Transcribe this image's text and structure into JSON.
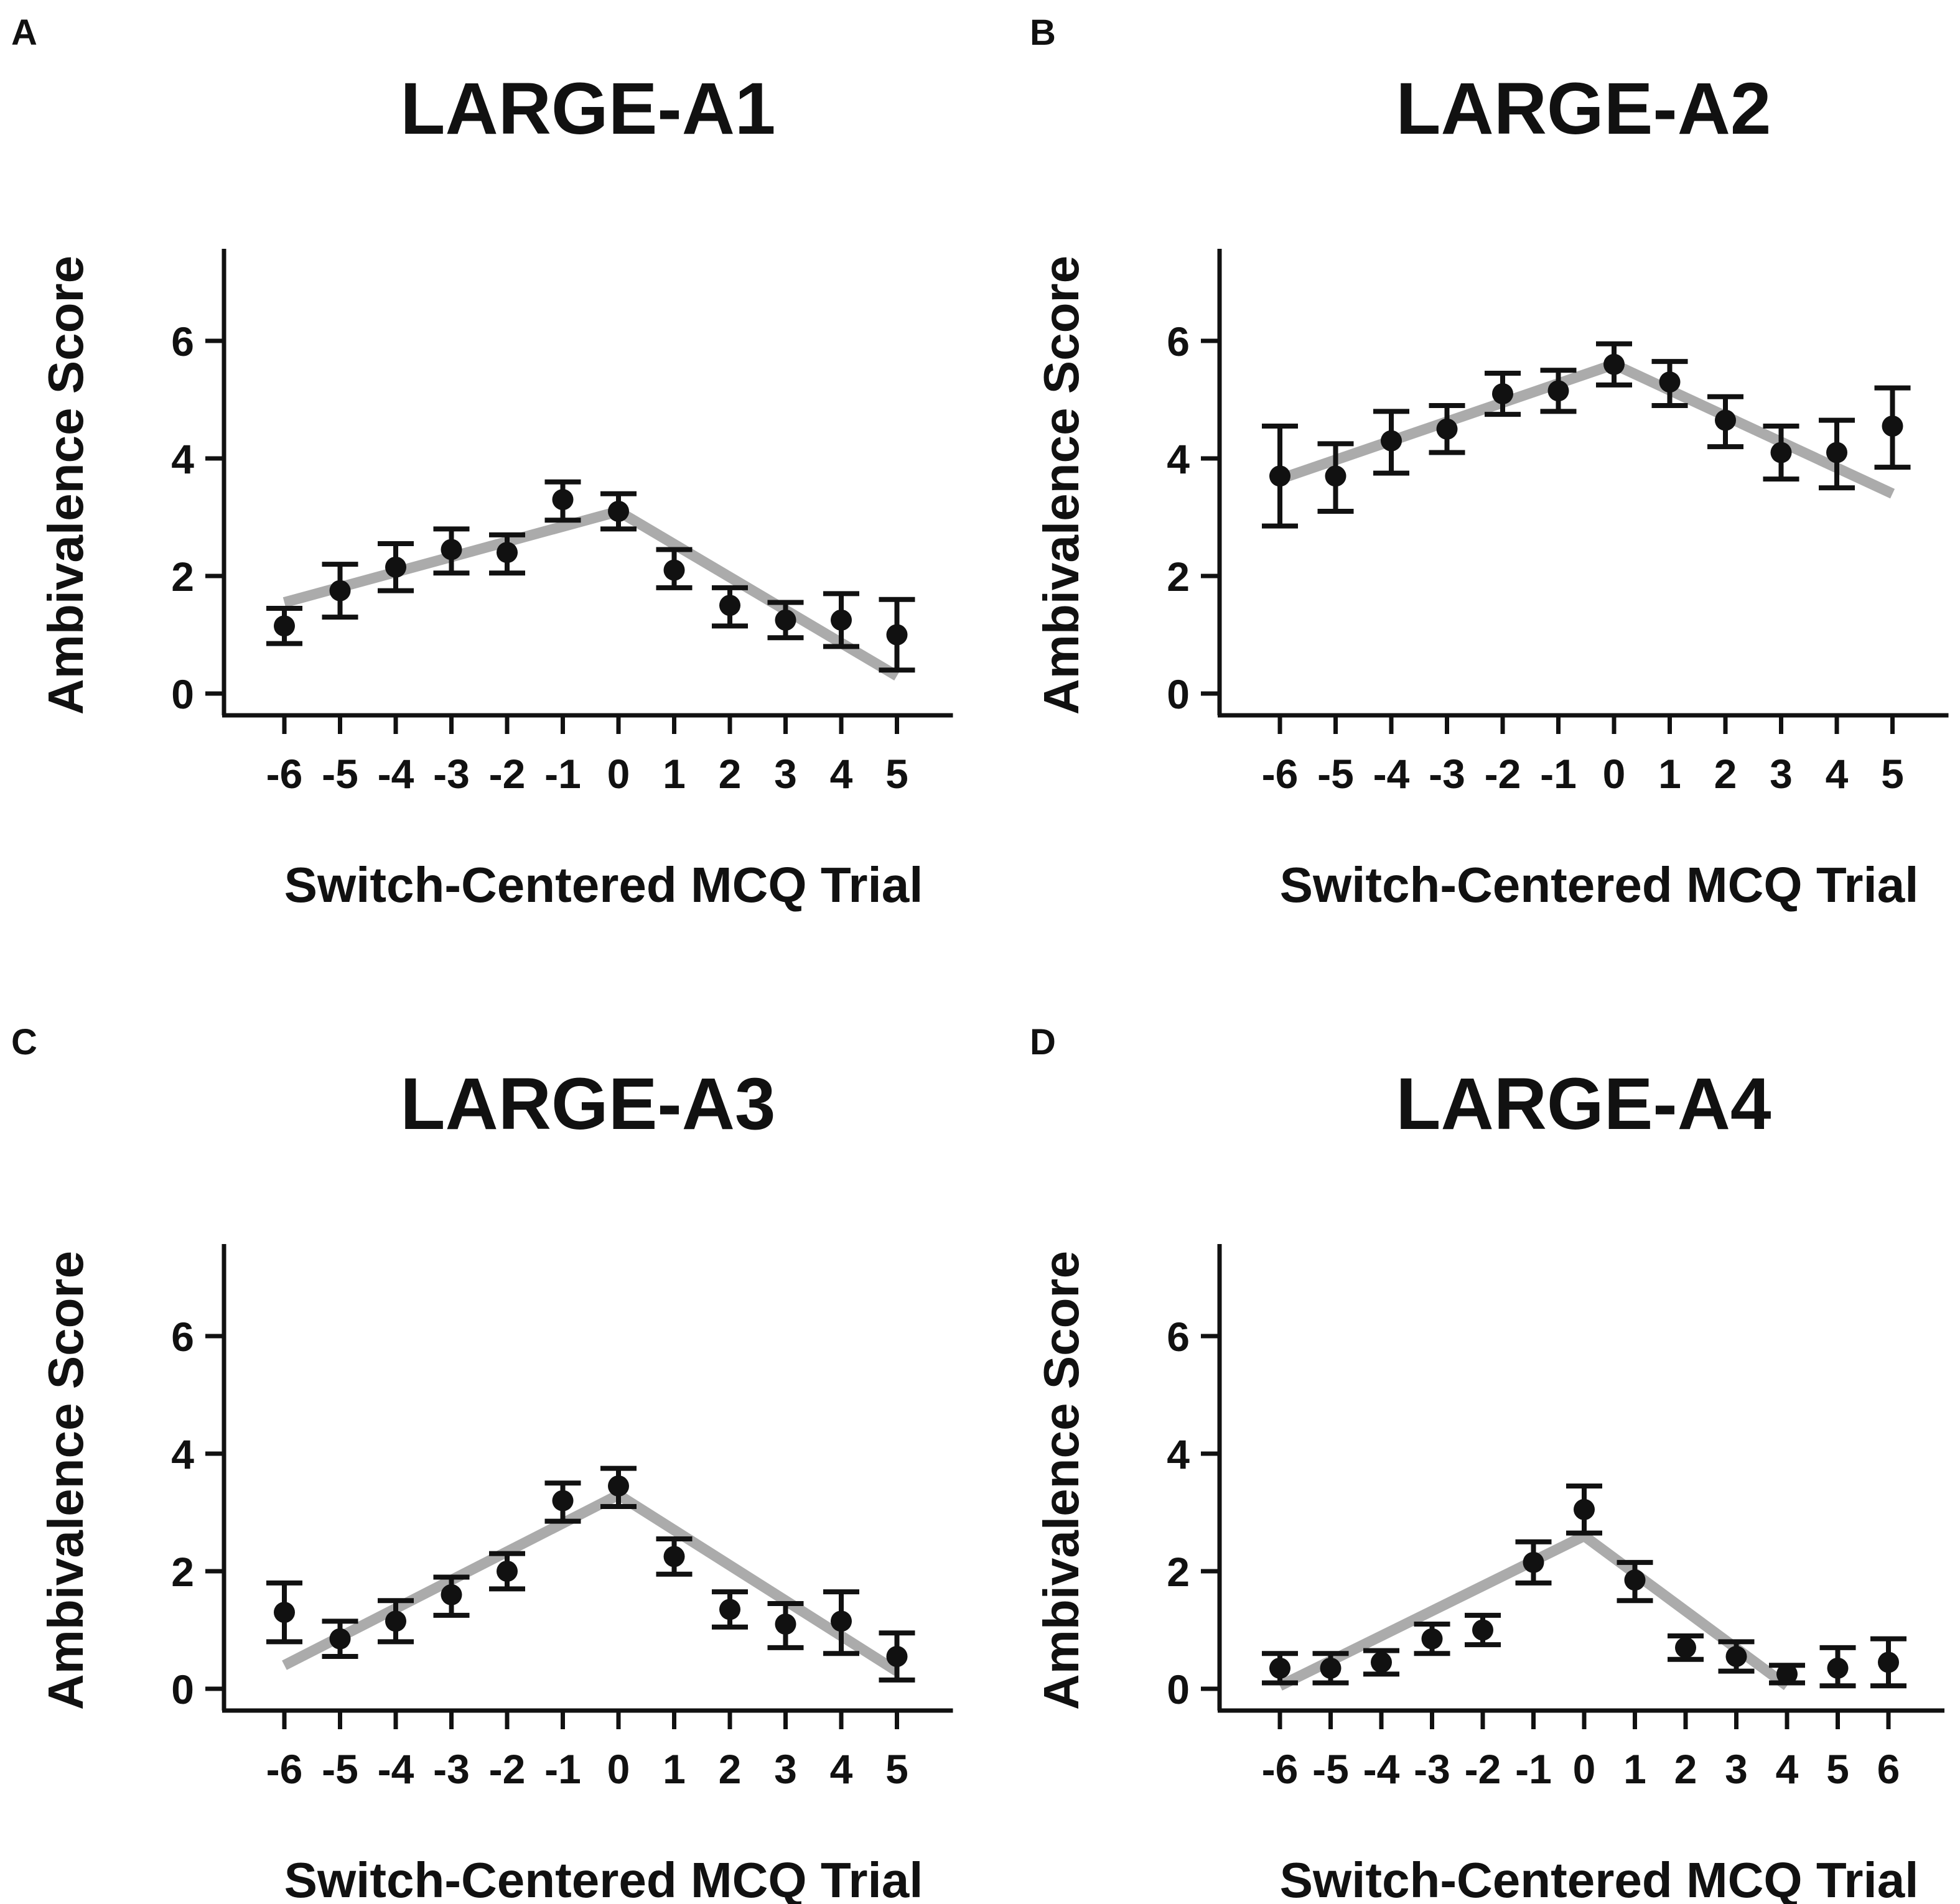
{
  "chart_data": [
    {
      "type": "scatter",
      "panel": "A",
      "title": "LARGE-A1",
      "xlabel": "Switch-Centered MCQ Trial",
      "ylabel": "Ambivalence Score",
      "ylim": [
        0,
        7.5
      ],
      "yticks": [
        0,
        2,
        4,
        6
      ],
      "x": [
        -6,
        -5,
        -4,
        -3,
        -2,
        -1,
        0,
        1,
        2,
        3,
        4,
        5
      ],
      "values": [
        1.15,
        1.75,
        2.15,
        2.45,
        2.4,
        3.3,
        3.1,
        2.1,
        1.5,
        1.25,
        1.25,
        1.0
      ],
      "err_low": [
        0.85,
        1.3,
        1.75,
        2.05,
        2.05,
        2.95,
        2.8,
        1.8,
        1.15,
        0.95,
        0.8,
        0.4
      ],
      "err_high": [
        1.45,
        2.2,
        2.55,
        2.8,
        2.7,
        3.6,
        3.4,
        2.45,
        1.8,
        1.55,
        1.7,
        1.6
      ],
      "fit": [
        [
          -6,
          1.55
        ],
        [
          0,
          3.1
        ],
        [
          5,
          0.3
        ]
      ]
    },
    {
      "type": "scatter",
      "panel": "B",
      "title": "LARGE-A2",
      "xlabel": "Switch-Centered MCQ Trial",
      "ylabel": "Ambivalence Score",
      "ylim": [
        0,
        7.5
      ],
      "yticks": [
        0,
        2,
        4,
        6
      ],
      "x": [
        -6,
        -5,
        -4,
        -3,
        -2,
        -1,
        0,
        1,
        2,
        3,
        4,
        5
      ],
      "values": [
        3.7,
        3.7,
        4.3,
        4.5,
        5.1,
        5.15,
        5.6,
        5.3,
        4.65,
        4.1,
        4.1,
        4.55
      ],
      "err_low": [
        2.85,
        3.1,
        3.75,
        4.1,
        4.75,
        4.8,
        5.25,
        4.9,
        4.2,
        3.65,
        3.5,
        3.85
      ],
      "err_high": [
        4.55,
        4.25,
        4.8,
        4.9,
        5.45,
        5.5,
        5.95,
        5.65,
        5.05,
        4.55,
        4.65,
        5.2
      ],
      "fit": [
        [
          -6,
          3.65
        ],
        [
          0,
          5.6
        ],
        [
          5,
          3.4
        ]
      ]
    },
    {
      "type": "scatter",
      "panel": "C",
      "title": "LARGE-A3",
      "xlabel": "Switch-Centered MCQ Trial",
      "ylabel": "Ambivalence Score",
      "ylim": [
        0,
        7.5
      ],
      "yticks": [
        0,
        2,
        4,
        6
      ],
      "x": [
        -6,
        -5,
        -4,
        -3,
        -2,
        -1,
        0,
        1,
        2,
        3,
        4,
        5
      ],
      "values": [
        1.3,
        0.85,
        1.15,
        1.6,
        2.0,
        3.2,
        3.45,
        2.25,
        1.35,
        1.1,
        1.15,
        0.55
      ],
      "err_low": [
        0.8,
        0.55,
        0.8,
        1.25,
        1.7,
        2.85,
        3.1,
        1.95,
        1.05,
        0.7,
        0.6,
        0.15
      ],
      "err_high": [
        1.8,
        1.15,
        1.5,
        1.9,
        2.3,
        3.5,
        3.75,
        2.55,
        1.65,
        1.45,
        1.65,
        0.95
      ],
      "fit": [
        [
          -6,
          0.4
        ],
        [
          0,
          3.3
        ],
        [
          5,
          0.3
        ]
      ]
    },
    {
      "type": "scatter",
      "panel": "D",
      "title": "LARGE-A4",
      "xlabel": "Switch-Centered MCQ Trial",
      "ylabel": "Ambivalence Score",
      "ylim": [
        0,
        7.5
      ],
      "yticks": [
        0,
        2,
        4,
        6
      ],
      "x": [
        -6,
        -5,
        -4,
        -3,
        -2,
        -1,
        0,
        1,
        2,
        3,
        4,
        5,
        6
      ],
      "values": [
        0.35,
        0.35,
        0.45,
        0.85,
        1.0,
        2.15,
        3.05,
        1.85,
        0.7,
        0.55,
        0.25,
        0.35,
        0.45
      ],
      "err_low": [
        0.1,
        0.1,
        0.25,
        0.6,
        0.75,
        1.8,
        2.65,
        1.5,
        0.5,
        0.3,
        0.1,
        0.05,
        0.05
      ],
      "err_high": [
        0.6,
        0.6,
        0.65,
        1.1,
        1.25,
        2.5,
        3.45,
        2.15,
        0.9,
        0.8,
        0.4,
        0.7,
        0.85
      ],
      "fit": [
        [
          -6,
          0.05
        ],
        [
          0,
          2.6
        ],
        [
          4,
          0.05
        ]
      ]
    }
  ]
}
